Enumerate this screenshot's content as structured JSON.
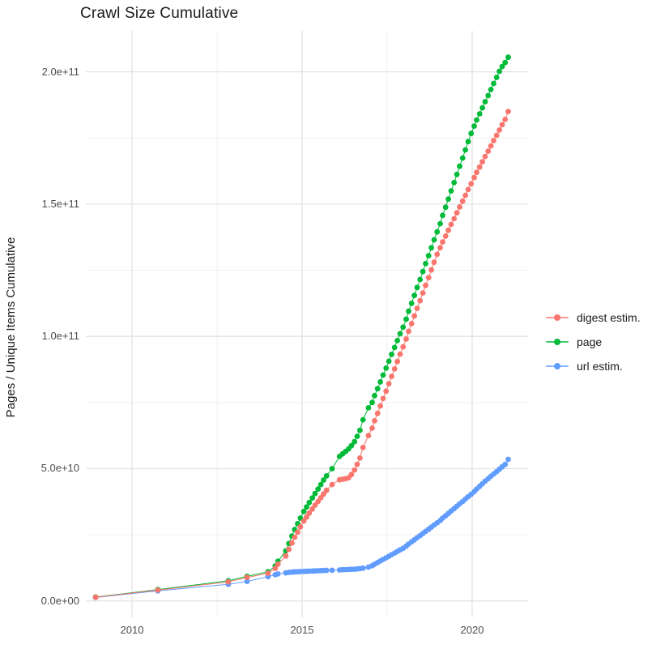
{
  "chart": {
    "title": "Crawl Size Cumulative",
    "y_axis_title": "Pages / Unique Items Cumulative"
  },
  "legend": {
    "position": "right",
    "items": [
      {
        "label": "digest estim.",
        "color": "#F8766D"
      },
      {
        "label": "page",
        "color": "#00BA38"
      },
      {
        "label": "url estim.",
        "color": "#619CFF"
      }
    ]
  },
  "colors": {
    "background": "#ffffff",
    "grid_major": "#e3e3e3",
    "grid_minor": "#f0f0f0",
    "tick_text": "#4d4d4d",
    "title_text": "#1a1a1a",
    "digest": "#F8766D",
    "page": "#00BA38",
    "url": "#619CFF"
  },
  "chart_data": {
    "type": "line",
    "title": "Crawl Size Cumulative",
    "xlabel": "",
    "ylabel": "Pages / Unique Items Cumulative",
    "grid": true,
    "legend_position": "right",
    "value_unit_multiplier": 1000000000.0,
    "xlim": [
      2008.643,
      2021.643
    ],
    "ylim_e9": [
      -6.2,
      215.5
    ],
    "x_ticks": [
      2010,
      2015,
      2020
    ],
    "x_tick_labels": [
      "2010",
      "2015",
      "2020"
    ],
    "x_minor_ticks": [
      2012.5,
      2017.5
    ],
    "y_ticks_e9": [
      0,
      50,
      100,
      150,
      200
    ],
    "y_tick_labels": [
      "0.0e+00",
      "5.0e+10",
      "1.0e+11",
      "1.5e+11",
      "2.0e+11"
    ],
    "y_minor_ticks_e9": [
      25,
      75,
      125,
      175
    ],
    "x": [
      2008.93,
      2010.76,
      2012.83,
      2013.38,
      2014.0,
      2014.21,
      2014.29,
      2014.52,
      2014.61,
      2014.7,
      2014.78,
      2014.87,
      2014.95,
      2015.05,
      2015.13,
      2015.21,
      2015.3,
      2015.38,
      2015.47,
      2015.55,
      2015.63,
      2015.72,
      2015.88,
      2016.1,
      2016.19,
      2016.28,
      2016.37,
      2016.45,
      2016.54,
      2016.62,
      2016.7,
      2016.79,
      2016.95,
      2017.06,
      2017.13,
      2017.22,
      2017.3,
      2017.38,
      2017.47,
      2017.55,
      2017.63,
      2017.72,
      2017.8,
      2017.88,
      2017.97,
      2018.06,
      2018.13,
      2018.22,
      2018.3,
      2018.38,
      2018.47,
      2018.55,
      2018.63,
      2018.72,
      2018.8,
      2018.88,
      2018.97,
      2019.06,
      2019.13,
      2019.22,
      2019.3,
      2019.38,
      2019.47,
      2019.55,
      2019.63,
      2019.72,
      2019.8,
      2019.88,
      2019.97,
      2020.06,
      2020.13,
      2020.22,
      2020.3,
      2020.38,
      2020.47,
      2020.55,
      2020.63,
      2020.72,
      2020.8,
      2020.88,
      2020.97,
      2021.06
    ],
    "series": [
      {
        "name": "digest estim.",
        "color": "#F8766D",
        "draw_order": 3,
        "values_e9": [
          1.4,
          4.1,
          7.2,
          8.9,
          10.5,
          12.3,
          13.9,
          17.0,
          19.5,
          21.9,
          24.1,
          26.0,
          28.0,
          30.2,
          31.7,
          33.2,
          34.7,
          36.2,
          37.6,
          39.0,
          40.4,
          41.8,
          44.0,
          45.8,
          46.0,
          46.2,
          46.6,
          47.8,
          49.5,
          51.6,
          54.0,
          58.0,
          62.5,
          65.3,
          68.1,
          70.9,
          73.7,
          76.5,
          79.3,
          82.1,
          84.9,
          87.7,
          90.5,
          93.3,
          96.0,
          99.0,
          101.9,
          104.8,
          107.7,
          110.6,
          113.5,
          116.4,
          119.3,
          122.2,
          125.1,
          128.0,
          131.0,
          133.5,
          135.7,
          137.9,
          140.1,
          142.3,
          144.5,
          146.7,
          148.9,
          151.1,
          153.3,
          155.5,
          157.7,
          160.0,
          162.0,
          164.0,
          166.0,
          168.0,
          170.0,
          172.0,
          174.0,
          176.0,
          178.0,
          180.0,
          182.0,
          185.0
        ]
      },
      {
        "name": "page",
        "color": "#00BA38",
        "draw_order": 1,
        "values_e9": [
          1.5,
          4.3,
          7.6,
          9.3,
          11.0,
          13.2,
          15.0,
          18.9,
          21.7,
          24.5,
          27.0,
          29.2,
          31.3,
          33.8,
          35.5,
          37.2,
          38.9,
          40.6,
          42.3,
          44.0,
          45.7,
          47.3,
          50.0,
          54.6,
          55.6,
          56.5,
          57.5,
          58.7,
          60.2,
          62.2,
          64.5,
          68.5,
          73.0,
          75.0,
          77.6,
          80.2,
          82.8,
          85.4,
          88.0,
          90.6,
          93.2,
          95.8,
          98.4,
          101.0,
          103.5,
          106.5,
          109.5,
          112.5,
          115.5,
          118.5,
          121.5,
          124.5,
          127.5,
          130.5,
          133.5,
          136.5,
          139.5,
          142.6,
          145.7,
          148.8,
          151.9,
          155.0,
          158.1,
          161.2,
          164.3,
          167.4,
          170.5,
          173.6,
          176.7,
          179.5,
          181.8,
          184.1,
          186.4,
          188.7,
          191.0,
          193.3,
          195.6,
          197.9,
          200.2,
          202.0,
          203.5,
          205.5
        ]
      },
      {
        "name": "url estim.",
        "color": "#619CFF",
        "draw_order": 2,
        "values_e9": [
          1.3,
          3.8,
          6.3,
          7.4,
          9.2,
          9.9,
          10.2,
          10.6,
          10.8,
          10.9,
          11.0,
          11.05,
          11.1,
          11.15,
          11.2,
          11.25,
          11.3,
          11.35,
          11.4,
          11.45,
          11.5,
          11.55,
          11.6,
          11.7,
          11.8,
          11.85,
          11.9,
          11.95,
          12.0,
          12.1,
          12.2,
          12.4,
          12.8,
          13.3,
          13.9,
          14.5,
          15.1,
          15.7,
          16.3,
          16.9,
          17.5,
          18.1,
          18.7,
          19.3,
          19.9,
          20.7,
          21.5,
          22.3,
          23.1,
          23.9,
          24.7,
          25.5,
          26.3,
          27.1,
          27.9,
          28.7,
          29.5,
          30.4,
          31.3,
          32.2,
          33.1,
          34.0,
          34.9,
          35.8,
          36.7,
          37.6,
          38.5,
          39.4,
          40.3,
          41.3,
          42.3,
          43.3,
          44.3,
          45.3,
          46.2,
          47.1,
          48.0,
          48.9,
          49.8,
          50.7,
          51.6,
          53.5
        ]
      }
    ]
  }
}
